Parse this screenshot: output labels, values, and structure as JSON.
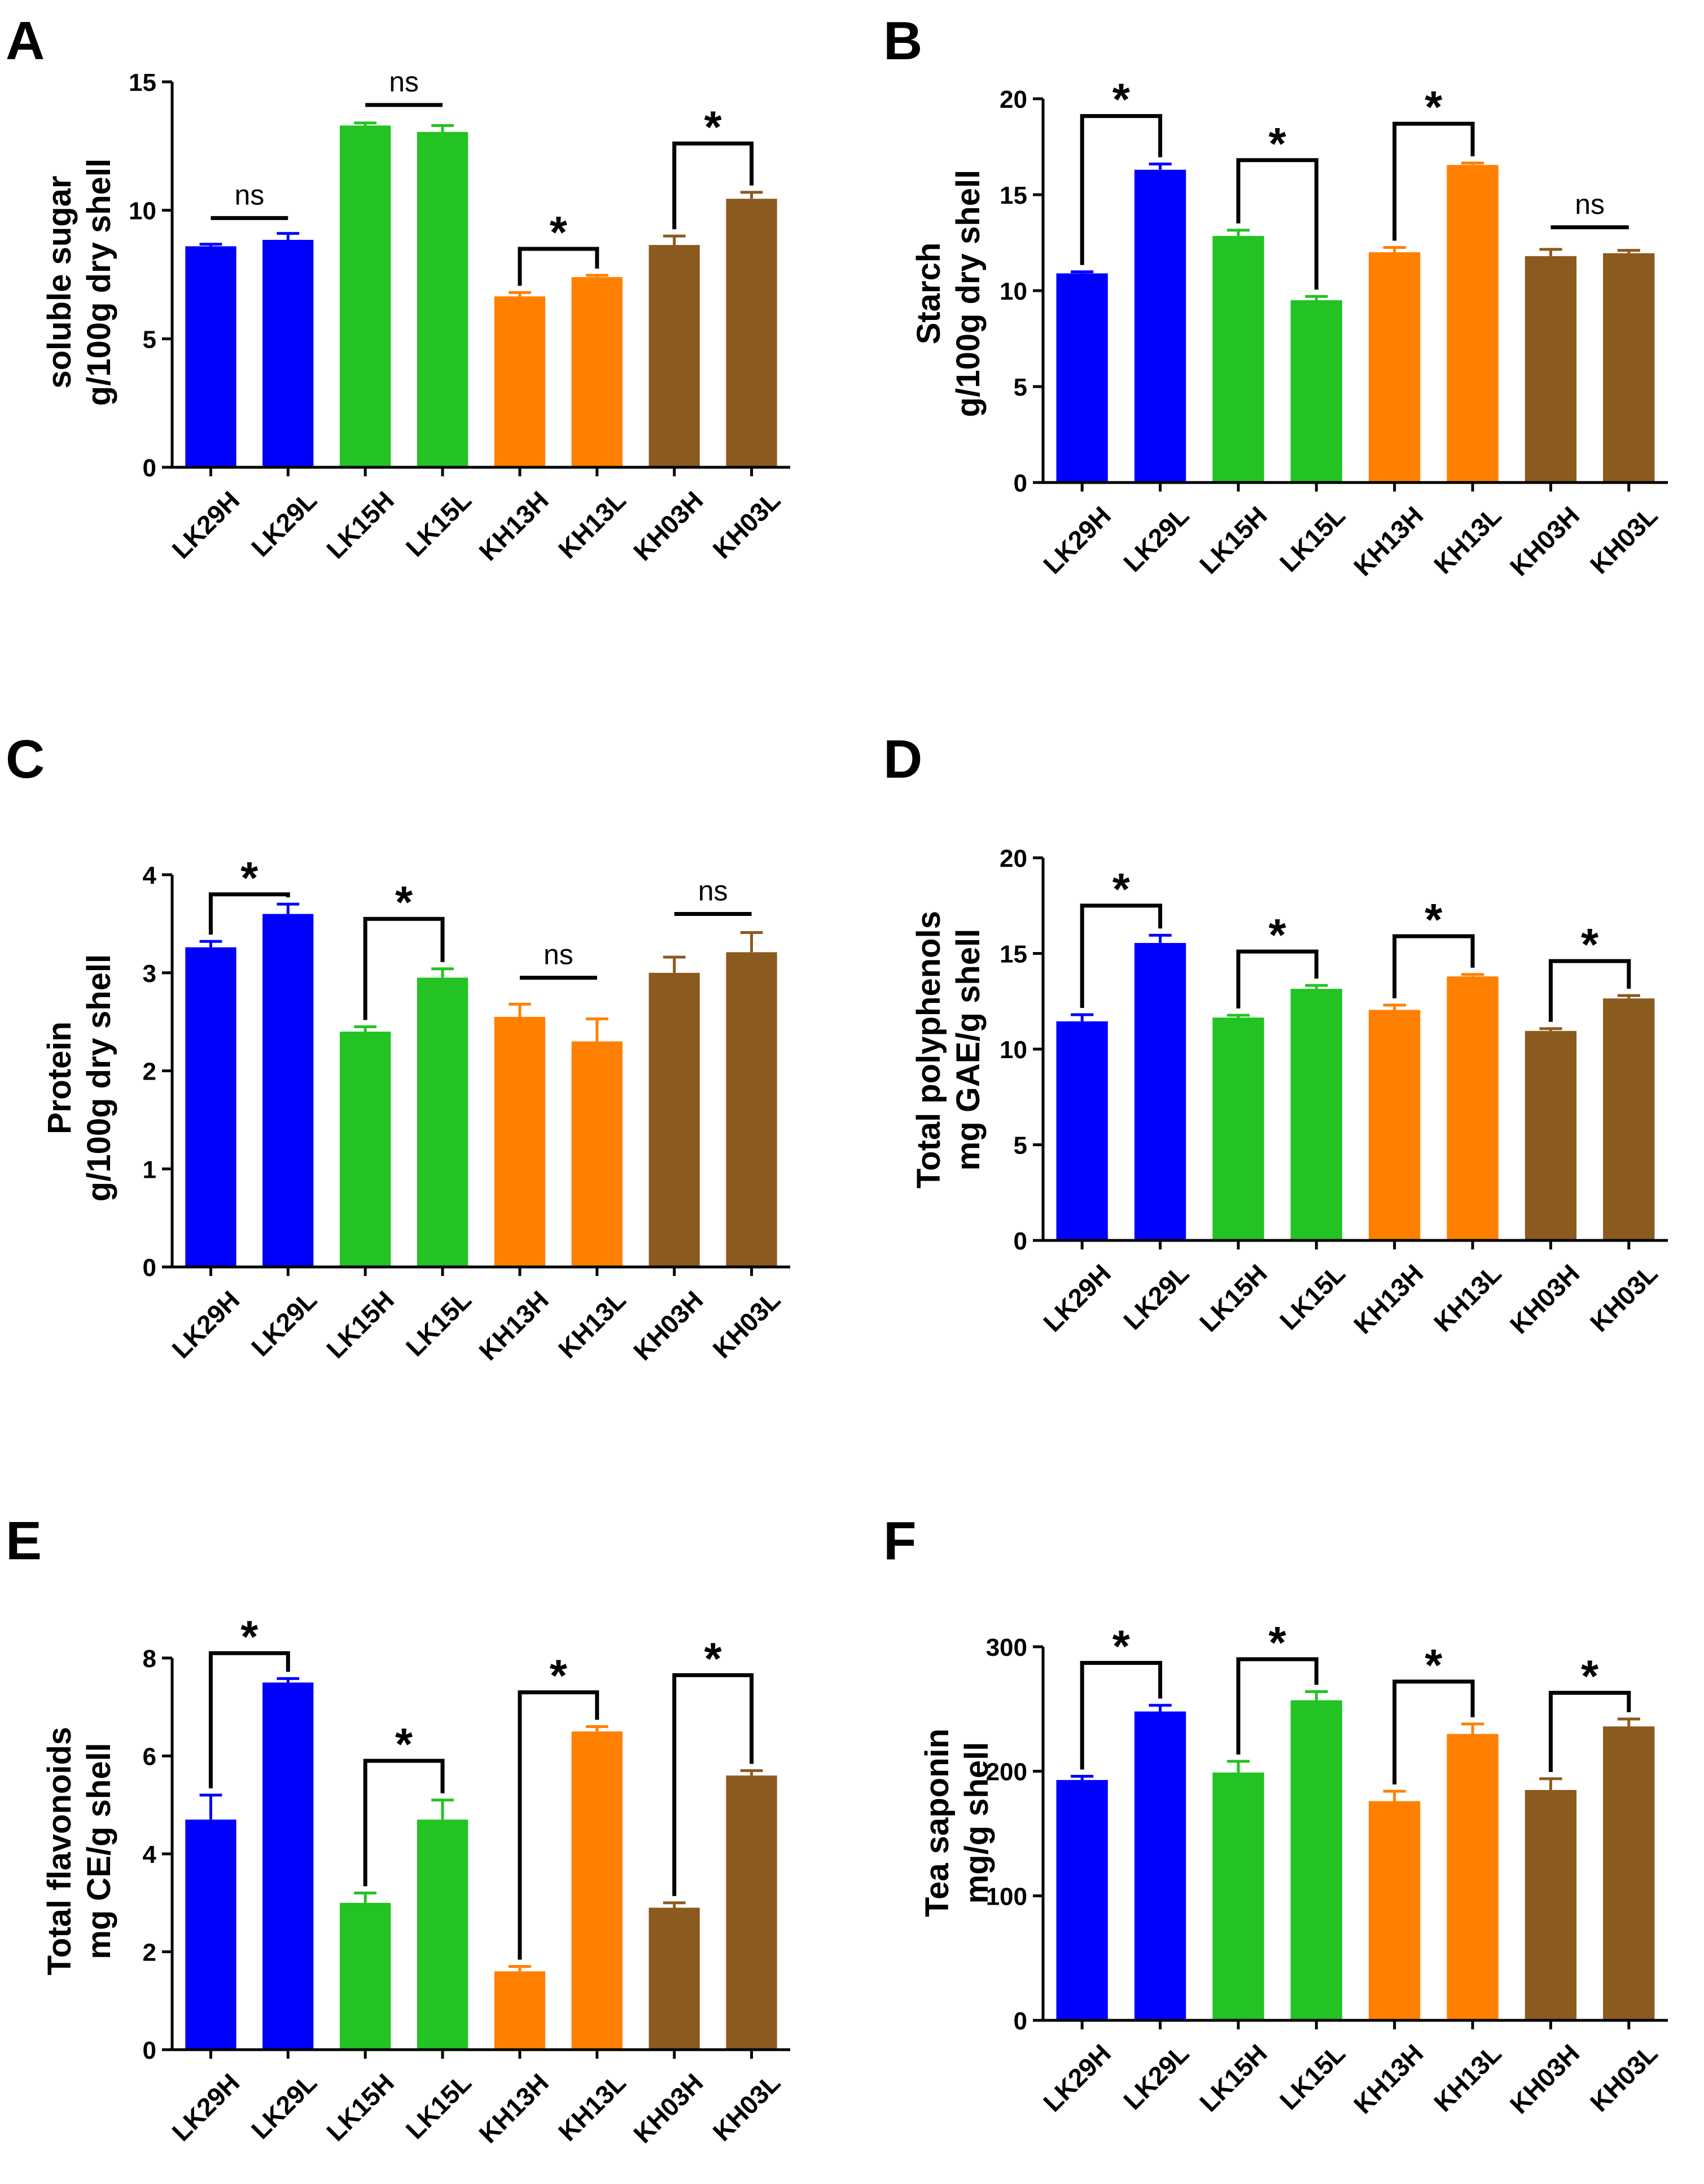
{
  "figure": {
    "colors": {
      "LK29": "#0000ff",
      "LK15": "#22c322",
      "KH13": "#ff8000",
      "KH03": "#8b5a1e",
      "axis": "#000000"
    }
  },
  "chart_data": [
    {
      "type": "bar",
      "panel": "A",
      "ylabel_line1": "soluble sugar",
      "ylabel_line2": "g/100g dry shell",
      "ylim": [
        0,
        15
      ],
      "yticks": [
        0,
        5,
        10,
        15
      ],
      "categories": [
        "LK29H",
        "LK29L",
        "LK15H",
        "LK15L",
        "KH13H",
        "KH13L",
        "KH03H",
        "KH03L"
      ],
      "values": [
        8.6,
        8.85,
        13.3,
        13.05,
        6.65,
        7.4,
        8.65,
        10.45
      ],
      "errors": [
        0.08,
        0.25,
        0.1,
        0.25,
        0.15,
        0.07,
        0.35,
        0.25
      ],
      "series_groups": [
        "LK29",
        "LK29",
        "LK15",
        "LK15",
        "KH13",
        "KH13",
        "KH03",
        "KH03"
      ],
      "significance": [
        {
          "pair": [
            0,
            1
          ],
          "label": "ns",
          "style": "line",
          "level": 9.7
        },
        {
          "pair": [
            2,
            3
          ],
          "label": "ns",
          "style": "line",
          "level": 14.1
        },
        {
          "pair": [
            4,
            5
          ],
          "label": "*",
          "style": "bracket",
          "level": 8.5
        },
        {
          "pair": [
            6,
            7
          ],
          "label": "*",
          "style": "bracket",
          "level": 12.6
        }
      ]
    },
    {
      "type": "bar",
      "panel": "B",
      "ylabel_line1": "Starch",
      "ylabel_line2": "g/100g dry shell",
      "ylim": [
        0,
        20
      ],
      "yticks": [
        0,
        5,
        10,
        15,
        20
      ],
      "categories": [
        "LK29H",
        "LK29L",
        "LK15H",
        "LK15L",
        "KH13H",
        "KH13L",
        "KH03H",
        "KH03L"
      ],
      "values": [
        10.9,
        16.3,
        12.85,
        9.5,
        12.0,
        16.55,
        11.8,
        11.95
      ],
      "errors": [
        0.08,
        0.3,
        0.3,
        0.2,
        0.25,
        0.1,
        0.35,
        0.15
      ],
      "series_groups": [
        "LK29",
        "LK29",
        "LK15",
        "LK15",
        "KH13",
        "KH13",
        "KH03",
        "KH03"
      ],
      "significance": [
        {
          "pair": [
            0,
            1
          ],
          "label": "*",
          "style": "bracket",
          "level": 19.1
        },
        {
          "pair": [
            2,
            3
          ],
          "label": "*",
          "style": "bracket",
          "level": 16.8
        },
        {
          "pair": [
            4,
            5
          ],
          "label": "*",
          "style": "bracket",
          "level": 18.7
        },
        {
          "pair": [
            6,
            7
          ],
          "label": "ns",
          "style": "line",
          "level": 13.3
        }
      ]
    },
    {
      "type": "bar",
      "panel": "C",
      "ylabel_line1": "Protein",
      "ylabel_line2": "g/100g dry shell",
      "ylim": [
        0,
        4
      ],
      "yticks": [
        0,
        1,
        2,
        3,
        4
      ],
      "categories": [
        "LK29H",
        "LK29L",
        "LK15H",
        "LK15L",
        "KH13H",
        "KH13L",
        "KH03H",
        "KH03L"
      ],
      "values": [
        3.26,
        3.6,
        2.4,
        2.95,
        2.55,
        2.3,
        3.0,
        3.21
      ],
      "errors": [
        0.06,
        0.1,
        0.05,
        0.09,
        0.13,
        0.23,
        0.16,
        0.2
      ],
      "series_groups": [
        "LK29",
        "LK29",
        "LK15",
        "LK15",
        "KH13",
        "KH13",
        "KH03",
        "KH03"
      ],
      "significance": [
        {
          "pair": [
            0,
            1
          ],
          "label": "*",
          "style": "bracket",
          "level": 3.8
        },
        {
          "pair": [
            2,
            3
          ],
          "label": "*",
          "style": "bracket",
          "level": 3.55
        },
        {
          "pair": [
            4,
            5
          ],
          "label": "ns",
          "style": "line",
          "level": 2.95
        },
        {
          "pair": [
            6,
            7
          ],
          "label": "ns",
          "style": "line",
          "level": 3.6
        }
      ]
    },
    {
      "type": "bar",
      "panel": "D",
      "ylabel_line1": "Total polyphenols",
      "ylabel_line2": "mg GAE/g shell",
      "ylim": [
        0,
        20
      ],
      "yticks": [
        0,
        5,
        10,
        15,
        20
      ],
      "categories": [
        "LK29H",
        "LK29L",
        "LK15H",
        "LK15L",
        "KH13H",
        "KH13L",
        "KH03H",
        "KH03L"
      ],
      "values": [
        11.45,
        15.55,
        11.65,
        13.15,
        12.05,
        13.8,
        10.95,
        12.65
      ],
      "errors": [
        0.35,
        0.4,
        0.12,
        0.18,
        0.25,
        0.1,
        0.12,
        0.15
      ],
      "series_groups": [
        "LK29",
        "LK29",
        "LK15",
        "LK15",
        "KH13",
        "KH13",
        "KH03",
        "KH03"
      ],
      "significance": [
        {
          "pair": [
            0,
            1
          ],
          "label": "*",
          "style": "bracket",
          "level": 17.5
        },
        {
          "pair": [
            2,
            3
          ],
          "label": "*",
          "style": "bracket",
          "level": 15.1
        },
        {
          "pair": [
            4,
            5
          ],
          "label": "*",
          "style": "bracket",
          "level": 15.9
        },
        {
          "pair": [
            6,
            7
          ],
          "label": "*",
          "style": "bracket",
          "level": 14.6
        }
      ]
    },
    {
      "type": "bar",
      "panel": "E",
      "ylabel_line1": "Total flavonoids",
      "ylabel_line2": "mg CE/g shell",
      "ylim": [
        0,
        8
      ],
      "yticks": [
        0,
        2,
        4,
        6,
        8
      ],
      "categories": [
        "LK29H",
        "LK29L",
        "LK15H",
        "LK15L",
        "KH13H",
        "KH13L",
        "KH03H",
        "KH03L"
      ],
      "values": [
        4.7,
        7.5,
        3.0,
        4.7,
        1.6,
        6.5,
        2.9,
        5.6
      ],
      "errors": [
        0.5,
        0.08,
        0.2,
        0.4,
        0.1,
        0.1,
        0.1,
        0.1
      ],
      "series_groups": [
        "LK29",
        "LK29",
        "LK15",
        "LK15",
        "KH13",
        "KH13",
        "KH03",
        "KH03"
      ],
      "significance": [
        {
          "pair": [
            0,
            1
          ],
          "label": "*",
          "style": "bracket",
          "level": 8.1
        },
        {
          "pair": [
            2,
            3
          ],
          "label": "*",
          "style": "bracket",
          "level": 5.9
        },
        {
          "pair": [
            4,
            5
          ],
          "label": "*",
          "style": "bracket",
          "level": 7.3
        },
        {
          "pair": [
            6,
            7
          ],
          "label": "*",
          "style": "bracket",
          "level": 7.65
        }
      ]
    },
    {
      "type": "bar",
      "panel": "F",
      "ylabel_line1": "Tea saponin",
      "ylabel_line2": "mg/g shell",
      "ylim": [
        0,
        300
      ],
      "yticks": [
        0,
        100,
        200,
        300
      ],
      "categories": [
        "LK29H",
        "LK29L",
        "LK15H",
        "LK15L",
        "KH13H",
        "KH13L",
        "KH03H",
        "KH03L"
      ],
      "values": [
        193,
        248,
        199,
        257,
        176,
        230,
        185,
        236
      ],
      "errors": [
        3,
        5,
        9,
        7,
        8,
        8,
        9,
        6
      ],
      "series_groups": [
        "LK29",
        "LK29",
        "LK15",
        "LK15",
        "KH13",
        "KH13",
        "KH03",
        "KH03"
      ],
      "significance": [
        {
          "pair": [
            0,
            1
          ],
          "label": "*",
          "style": "bracket",
          "level": 287
        },
        {
          "pair": [
            2,
            3
          ],
          "label": "*",
          "style": "bracket",
          "level": 290
        },
        {
          "pair": [
            4,
            5
          ],
          "label": "*",
          "style": "bracket",
          "level": 272
        },
        {
          "pair": [
            6,
            7
          ],
          "label": "*",
          "style": "bracket",
          "level": 263
        }
      ]
    }
  ]
}
